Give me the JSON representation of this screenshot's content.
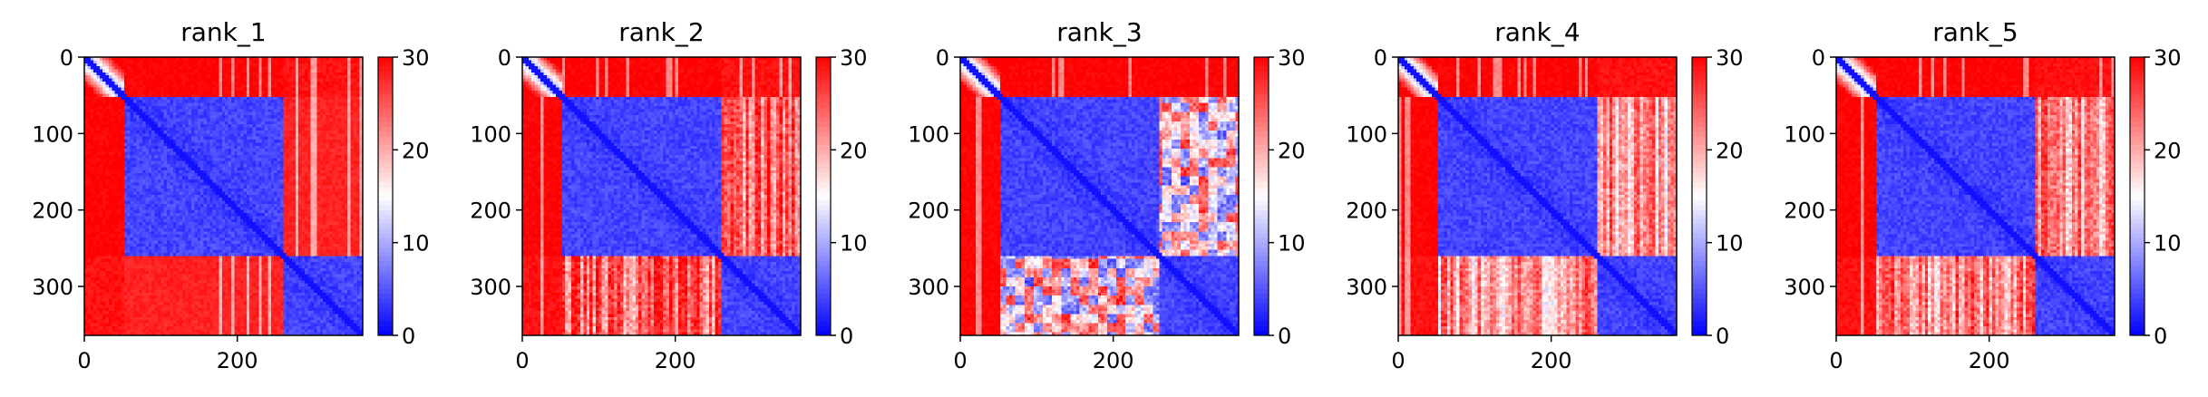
{
  "chart_data": [
    {
      "type": "heatmap",
      "title": "rank_1",
      "matrix_size": 364,
      "x_ticks": [
        0,
        200
      ],
      "y_ticks": [
        0,
        100,
        200,
        300
      ],
      "colorbar": {
        "min": 0,
        "max": 30,
        "ticks": [
          0,
          10,
          20,
          30
        ]
      },
      "colormap": [
        "#0000ff",
        "#ffffff",
        "#ff0000"
      ],
      "domains": [
        [
          0,
          52
        ],
        [
          52,
          262
        ],
        [
          262,
          364
        ]
      ],
      "off_diagonal_level": {
        "0-1": 30,
        "0-2": 29,
        "1-2": 28
      },
      "streak_style": "sparse"
    },
    {
      "type": "heatmap",
      "title": "rank_2",
      "matrix_size": 364,
      "x_ticks": [
        0,
        200
      ],
      "y_ticks": [
        0,
        100,
        200,
        300
      ],
      "colorbar": {
        "min": 0,
        "max": 30,
        "ticks": [
          0,
          10,
          20,
          30
        ]
      },
      "colormap": [
        "#0000ff",
        "#ffffff",
        "#ff0000"
      ],
      "domains": [
        [
          0,
          52
        ],
        [
          52,
          262
        ],
        [
          262,
          364
        ]
      ],
      "off_diagonal_level": {
        "0-1": 30,
        "0-2": 29,
        "1-2": 24
      },
      "streak_style": "light"
    },
    {
      "type": "heatmap",
      "title": "rank_3",
      "matrix_size": 364,
      "x_ticks": [
        0,
        200
      ],
      "y_ticks": [
        0,
        100,
        200,
        300
      ],
      "colorbar": {
        "min": 0,
        "max": 30,
        "ticks": [
          0,
          10,
          20,
          30
        ]
      },
      "colormap": [
        "#0000ff",
        "#ffffff",
        "#ff0000"
      ],
      "domains": [
        [
          0,
          52
        ],
        [
          52,
          262
        ],
        [
          262,
          364
        ]
      ],
      "off_diagonal_level": {
        "0-1": 30,
        "0-2": 30,
        "1-2": 16
      },
      "streak_style": "mottled"
    },
    {
      "type": "heatmap",
      "title": "rank_4",
      "matrix_size": 364,
      "x_ticks": [
        0,
        200
      ],
      "y_ticks": [
        0,
        100,
        200,
        300
      ],
      "colorbar": {
        "min": 0,
        "max": 30,
        "ticks": [
          0,
          10,
          20,
          30
        ]
      },
      "colormap": [
        "#0000ff",
        "#ffffff",
        "#ff0000"
      ],
      "domains": [
        [
          0,
          52
        ],
        [
          52,
          262
        ],
        [
          262,
          364
        ]
      ],
      "off_diagonal_level": {
        "0-1": 30,
        "0-2": 29,
        "1-2": 21
      },
      "streak_style": "light"
    },
    {
      "type": "heatmap",
      "title": "rank_5",
      "matrix_size": 364,
      "x_ticks": [
        0,
        200
      ],
      "y_ticks": [
        0,
        100,
        200,
        300
      ],
      "colorbar": {
        "min": 0,
        "max": 30,
        "ticks": [
          0,
          10,
          20,
          30
        ]
      },
      "colormap": [
        "#0000ff",
        "#ffffff",
        "#ff0000"
      ],
      "domains": [
        [
          0,
          52
        ],
        [
          52,
          262
        ],
        [
          262,
          364
        ]
      ],
      "off_diagonal_level": {
        "0-1": 30,
        "0-2": 29,
        "1-2": 22
      },
      "streak_style": "light"
    }
  ]
}
